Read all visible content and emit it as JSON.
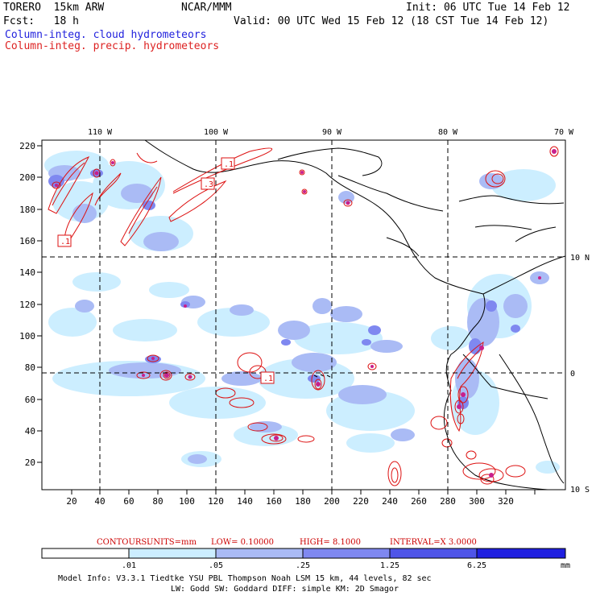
{
  "header": {
    "model": "TORERO  15km ARW",
    "org": "NCAR/MMM",
    "init": "Init: 06 UTC Tue 14 Feb 12",
    "fcst": "Fcst:   18 h",
    "valid": "Valid: 00 UTC Wed 15 Feb 12 (18 CST Tue 14 Feb 12)",
    "field_cloud": "Column-integ. cloud hydrometeors",
    "field_precip": "Column-integ. precip. hydrometeors"
  },
  "colors": {
    "cloud_label": "#2222dd",
    "precip_label": "#dd2222",
    "contour": "#dd1111",
    "shade_levels": [
      "#cceeff",
      "#aabbf5",
      "#7f88f0",
      "#4f55e8",
      "#2020e0"
    ]
  },
  "top_lon_labels": [
    "110 W",
    "100 W",
    "90 W",
    "80 W",
    "70 W"
  ],
  "right_lat_labels": [
    "10 N",
    "0",
    "10 S"
  ],
  "y_axis_ticks": [
    "220",
    "200",
    "180",
    "160",
    "140",
    "120",
    "100",
    "80",
    "60",
    "40",
    "20"
  ],
  "x_axis_ticks": [
    "20",
    "40",
    "60",
    "80",
    "100",
    "120",
    "140",
    "160",
    "180",
    "200",
    "220",
    "240",
    "260",
    "280",
    "300",
    "320"
  ],
  "contour_labels": [
    ".1",
    ".3",
    ".1",
    ".1"
  ],
  "contour_info": {
    "contours": "CONTOURS:",
    "units": "UNITS=mm",
    "low": "LOW= 0.10000",
    "high": "HIGH=   8.1000",
    "interval": "INTERVAL=X  3.0000"
  },
  "colorbar": {
    "levels": [
      ".01",
      ".05",
      ".25",
      "1.25",
      "6.25"
    ],
    "unit": "mm"
  },
  "footer": {
    "line1": "Model Info: V3.3.1    Tiedtke YSU PBL  Thompson    Noah LSM  15 km,   44 levels,   82 sec",
    "line2": "LW: Godd SW: Goddard DIFF: simple KM: 2D Smagor"
  }
}
